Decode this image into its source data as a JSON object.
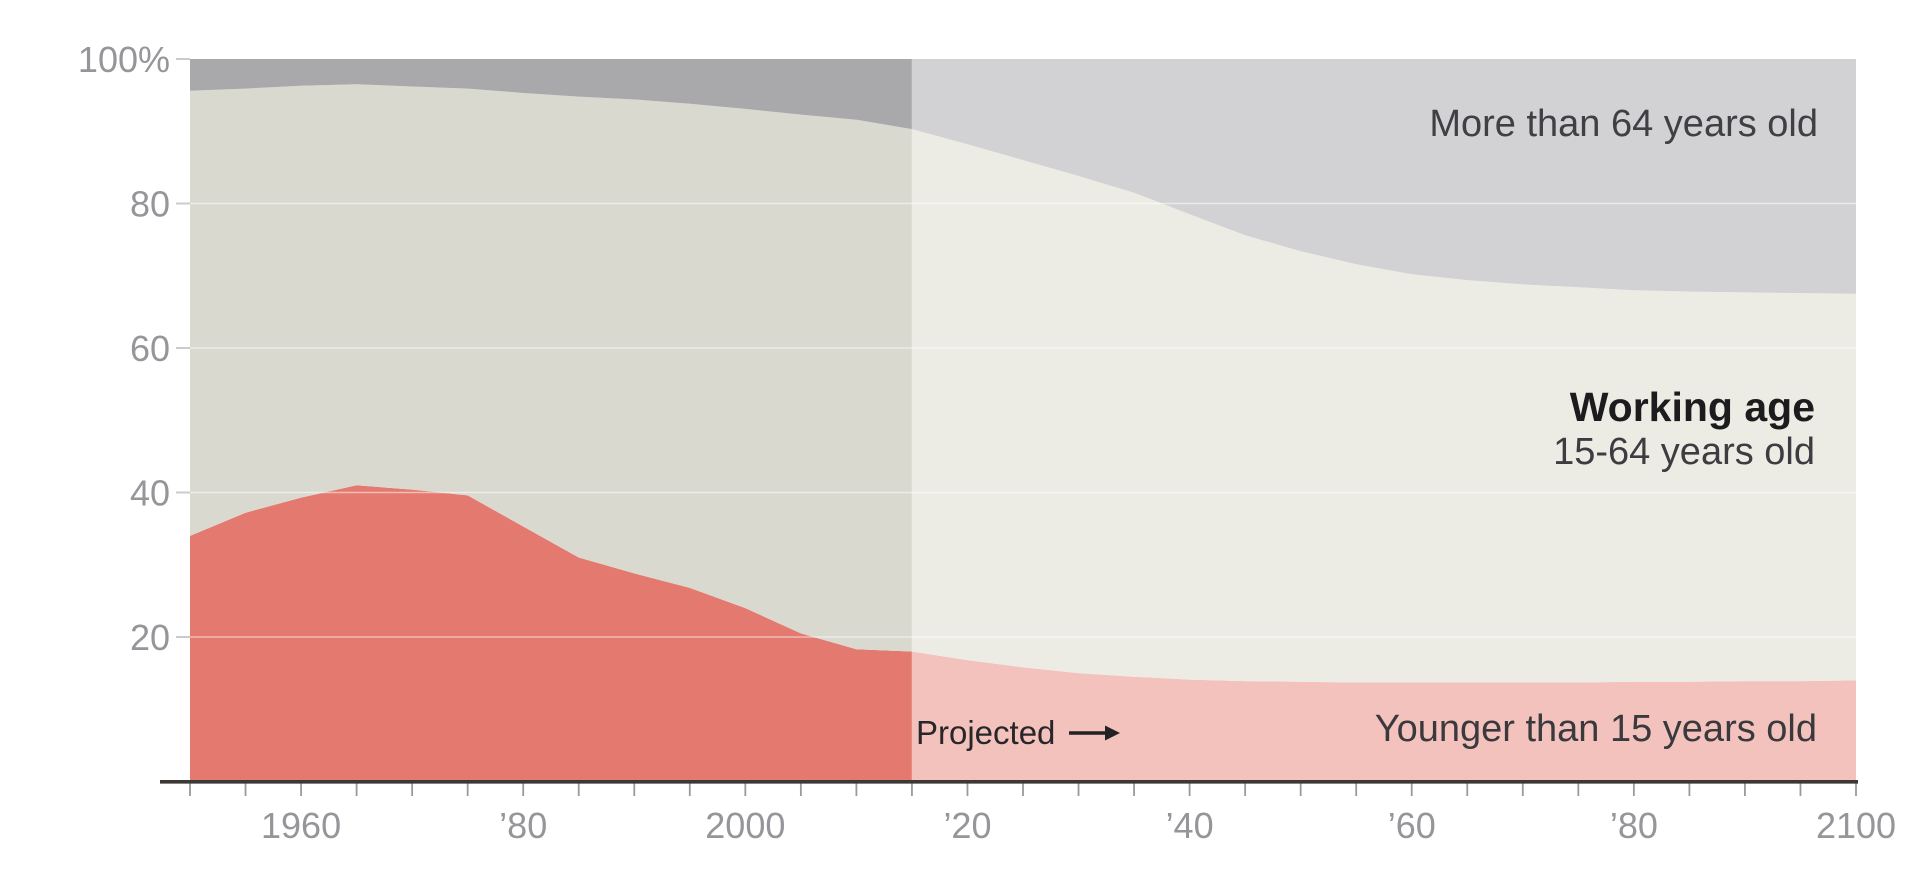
{
  "chart": {
    "y_axis": {
      "tick_labels": [
        "100%",
        "80",
        "60",
        "40",
        "20"
      ],
      "tick_values": [
        100,
        80,
        60,
        40,
        20
      ]
    },
    "x_axis": {
      "tick_labels": [
        "1960",
        "’80",
        "2000",
        "’20",
        "’40",
        "’60",
        "’80",
        "2100"
      ],
      "tick_values": [
        1960,
        1980,
        2000,
        2020,
        2040,
        2060,
        2080,
        2100
      ],
      "minor_tick_step_years": 5
    },
    "annotations": {
      "elderly_label": "More than 64 years old",
      "working_label_bold": "Working age",
      "working_label_sub": "15-64 years old",
      "young_label": "Younger than 15 years old",
      "projected_label": "Projected"
    },
    "colors": {
      "young_historical": "#e4796f",
      "young_projected": "#f4c2bd",
      "working_historical": "#d9d9d0",
      "working_projected": "#edece4",
      "elderly_historical": "#a9a9ab",
      "elderly_projected": "#d2d2d4",
      "axis_line": "#3c3835",
      "tick": "#9a9a9a",
      "tick_label": "#95959a",
      "y_tick_dash": "#cbcbcb",
      "gridline": "rgba(255,255,255,0.5)"
    }
  },
  "chart_data": {
    "type": "area",
    "stacked": true,
    "value_unit": "% of population",
    "xlim": [
      1950,
      2100
    ],
    "ylim": [
      0,
      100
    ],
    "grid": true,
    "legend_position": "labels-on-chart",
    "projection_start_year": 2015,
    "x": [
      1950,
      1955,
      1960,
      1965,
      1970,
      1975,
      1980,
      1985,
      1990,
      1995,
      2000,
      2005,
      2010,
      2015,
      2020,
      2025,
      2030,
      2035,
      2040,
      2045,
      2050,
      2055,
      2060,
      2065,
      2070,
      2075,
      2080,
      2085,
      2090,
      2095,
      2100
    ],
    "series": [
      {
        "name": "Younger than 15 years old",
        "values": [
          34,
          37.2,
          39.3,
          41,
          40.4,
          39.6,
          35.3,
          31,
          28.8,
          26.8,
          24,
          20.5,
          18.3,
          18,
          16.8,
          15.8,
          15,
          14.5,
          14.1,
          13.9,
          13.8,
          13.7,
          13.7,
          13.7,
          13.7,
          13.7,
          13.8,
          13.8,
          13.9,
          13.9,
          14
        ]
      },
      {
        "name": "Working age (15-64 years old)",
        "values": [
          61.6,
          58.7,
          57,
          55.5,
          55.8,
          56.3,
          60,
          63.8,
          65.6,
          67,
          69.1,
          71.8,
          73.3,
          72.3,
          71.4,
          70.2,
          68.8,
          67,
          64.4,
          61.7,
          59.6,
          57.9,
          56.5,
          55.7,
          55.1,
          54.7,
          54.2,
          54,
          53.8,
          53.7,
          53.5
        ]
      },
      {
        "name": "More than 64 years old",
        "values": [
          4.4,
          4.1,
          3.7,
          3.5,
          3.8,
          4.1,
          4.7,
          5.2,
          5.6,
          6.2,
          6.9,
          7.7,
          8.4,
          9.7,
          11.8,
          14,
          16.2,
          18.5,
          21.5,
          24.4,
          26.6,
          28.4,
          29.8,
          30.6,
          31.2,
          31.6,
          32,
          32.2,
          32.3,
          32.4,
          32.5
        ]
      }
    ]
  }
}
